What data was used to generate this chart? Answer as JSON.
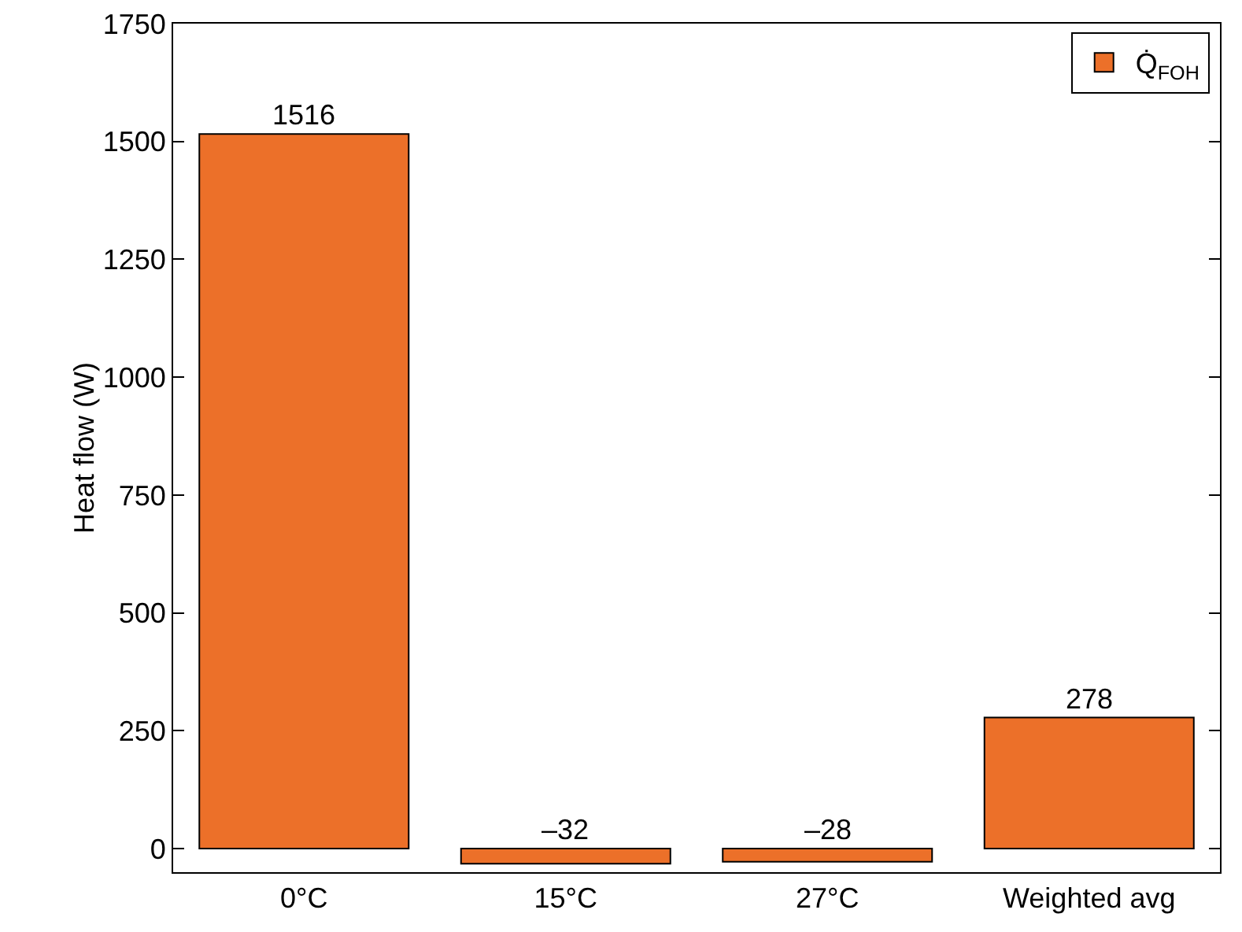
{
  "chart_data": {
    "type": "bar",
    "ylabel": "Heat flow (W)",
    "categories": [
      "0°C",
      "15°C",
      "27°C",
      "Weighted avg"
    ],
    "series": [
      {
        "name": "Q̇$_{FOH}$",
        "color": "#ec7029",
        "values": [
          1516,
          -32,
          -28,
          278
        ],
        "value_labels": [
          "1516",
          "–32",
          "–28",
          "278"
        ]
      }
    ],
    "ylim": [
      -50,
      1750
    ],
    "yticks": [
      0,
      250,
      500,
      750,
      1000,
      1250,
      1500,
      1750
    ],
    "grid": false,
    "legend": "top right"
  }
}
